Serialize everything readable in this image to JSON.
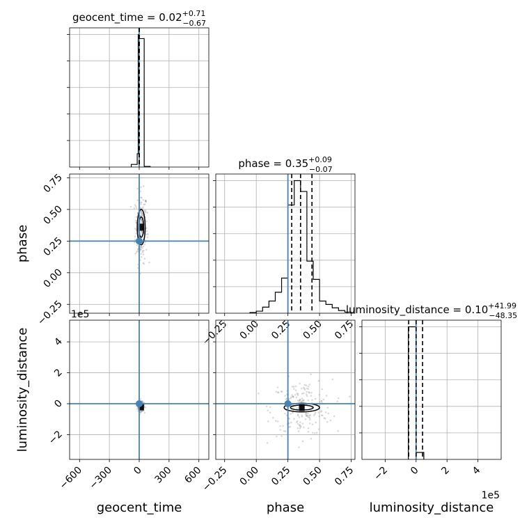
{
  "chart_data": {
    "type": "corner",
    "parameters": [
      "geocent_time",
      "phase",
      "luminosity_distance"
    ],
    "axis_labels": {
      "geocent_time": "geocent_time",
      "phase": "phase",
      "luminosity_distance": "luminosity_distance"
    },
    "truth": {
      "geocent_time": 0,
      "phase": 0.25,
      "luminosity_distance": 0
    },
    "truth_color": "#4682b4",
    "offset_text": {
      "luminosity_distance_y": "1e5",
      "luminosity_distance_x": "1e5"
    },
    "panels": [
      {
        "id": "geocent_time-hist",
        "kind": "hist",
        "param": "geocent_time",
        "title": {
          "prefix": "geocent_time = 0.02",
          "plus": "+0.71",
          "minus": "−0.67"
        },
        "xlim": [
          -700,
          700
        ],
        "xticks": [
          -600,
          -300,
          0,
          300,
          600
        ],
        "xticklabels": [],
        "quantiles": [
          -0.65,
          0.02,
          0.73
        ],
        "bins": [
          {
            "start": -80,
            "end": -20,
            "height": 0.02
          },
          {
            "start": -20,
            "end": -10,
            "height": 0.1
          },
          {
            "start": -10,
            "end": 0,
            "height": 0.999
          },
          {
            "start": 0,
            "end": 50,
            "height": 0.968
          },
          {
            "start": 50,
            "end": 110,
            "height": 0.005
          }
        ]
      },
      {
        "id": "phase-hist",
        "kind": "hist",
        "param": "phase",
        "title": {
          "prefix": "phase = 0.35",
          "plus": "+0.09",
          "minus": "−0.07"
        },
        "xlim": [
          -0.32,
          0.78
        ],
        "xticks": [
          -0.25,
          0,
          0.25,
          0.5,
          0.75
        ],
        "xticklabels": [
          "−0.25",
          "0.00",
          "0.25",
          "0.50",
          "0.75"
        ],
        "quantiles": [
          0.28,
          0.35,
          0.44
        ],
        "bins": [
          {
            "start": -0.05,
            "end": 0.0,
            "height": 0.005
          },
          {
            "start": 0.0,
            "end": 0.05,
            "height": 0.015
          },
          {
            "start": 0.05,
            "end": 0.1,
            "height": 0.045
          },
          {
            "start": 0.1,
            "end": 0.15,
            "height": 0.09
          },
          {
            "start": 0.15,
            "end": 0.2,
            "height": 0.155
          },
          {
            "start": 0.2,
            "end": 0.25,
            "height": 0.26
          },
          {
            "start": 0.25,
            "end": 0.3,
            "height": 0.8
          },
          {
            "start": 0.3,
            "end": 0.35,
            "height": 0.98
          },
          {
            "start": 0.35,
            "end": 0.4,
            "height": 0.9
          },
          {
            "start": 0.4,
            "end": 0.45,
            "height": 0.385
          },
          {
            "start": 0.45,
            "end": 0.5,
            "height": 0.25
          },
          {
            "start": 0.5,
            "end": 0.55,
            "height": 0.09
          },
          {
            "start": 0.55,
            "end": 0.6,
            "height": 0.065
          },
          {
            "start": 0.6,
            "end": 0.65,
            "height": 0.04
          },
          {
            "start": 0.65,
            "end": 0.7,
            "height": 0.02
          },
          {
            "start": 0.7,
            "end": 0.75,
            "height": 0.008
          }
        ]
      },
      {
        "id": "luminosity_distance-hist",
        "kind": "hist",
        "param": "luminosity_distance",
        "title": {
          "prefix": "luminosity_distance = 0.10",
          "plus": "+41.99",
          "minus": "−48.35"
        },
        "xlim": [
          -3.5,
          5.5
        ],
        "xticks": [
          -2,
          0,
          2,
          4
        ],
        "xticklabels": [
          "−2",
          "0",
          "2",
          "4"
        ],
        "quantiles": [
          -0.48,
          0.001,
          0.42
        ],
        "bins": [
          {
            "start": -0.5,
            "end": 0.0,
            "height": 0.95
          },
          {
            "start": 0.0,
            "end": 0.5,
            "height": 0.05
          }
        ]
      },
      {
        "id": "phase-vs-geocent_time",
        "kind": "2d",
        "xparam": "geocent_time",
        "yparam": "phase",
        "xlim": [
          -700,
          700
        ],
        "ylim": [
          -0.32,
          0.78
        ],
        "xticks": [
          -600,
          -300,
          0,
          300,
          600
        ],
        "yticks": [
          -0.25,
          0,
          0.25,
          0.5,
          0.75
        ],
        "yticklabels": [
          "−0.25",
          "0.00",
          "0.25",
          "0.50",
          "0.75"
        ],
        "center": [
          20,
          0.36
        ],
        "contours": [
          {
            "rx": 40,
            "ry": 0.14
          },
          {
            "rx": 25,
            "ry": 0.08
          }
        ],
        "scatter_spread": [
          30,
          0.14
        ]
      },
      {
        "id": "luminosity_distance-vs-geocent_time",
        "kind": "2d",
        "xparam": "geocent_time",
        "yparam": "luminosity_distance",
        "xlim": [
          -700,
          700
        ],
        "ylim": [
          -3.6,
          5.4
        ],
        "xticks": [
          -600,
          -300,
          0,
          300,
          600
        ],
        "xticklabels": [
          "−600",
          "−300",
          "0",
          "300",
          "600"
        ],
        "yticks": [
          -2,
          0,
          2,
          4
        ],
        "yticklabels": [
          "−2",
          "0",
          "2",
          "4"
        ],
        "center": [
          20,
          -0.2
        ],
        "contours": [],
        "scatter_spread": [
          15,
          0.15
        ]
      },
      {
        "id": "luminosity_distance-vs-phase",
        "kind": "2d",
        "xparam": "phase",
        "yparam": "luminosity_distance",
        "xlim": [
          -0.32,
          0.78
        ],
        "ylim": [
          -3.6,
          5.4
        ],
        "xticks": [
          -0.25,
          0,
          0.25,
          0.5,
          0.75
        ],
        "xticklabels": [
          "−0.25",
          "0.00",
          "0.25",
          "0.50",
          "0.75"
        ],
        "yticks": [
          -2,
          0,
          2,
          4
        ],
        "yticklabels": [],
        "center": [
          0.36,
          -0.25
        ],
        "contours": [
          {
            "rx": 0.14,
            "ry": 0.28
          },
          {
            "rx": 0.09,
            "ry": 0.16
          }
        ],
        "scatter_spread": [
          0.12,
          0.9
        ]
      }
    ]
  }
}
